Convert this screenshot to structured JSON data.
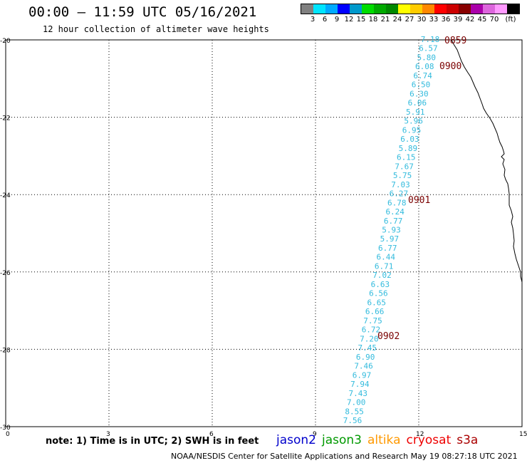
{
  "header": {
    "title": "00:00 – 11:59 UTC 05/16/2021",
    "subtitle": "12 hour collection of altimeter wave heights"
  },
  "legend": {
    "unit_label": "(ft)",
    "colors": [
      "#808080",
      "#00e5ff",
      "#00aaff",
      "#0000ff",
      "#0099cc",
      "#00dd00",
      "#00aa00",
      "#008800",
      "#ffff00",
      "#ffcc00",
      "#ff8800",
      "#ff0000",
      "#cc0000",
      "#880000",
      "#aa00aa",
      "#dd66dd",
      "#ff99ff",
      "#000000"
    ],
    "labels": [
      "3",
      "6",
      "9",
      "12",
      "15",
      "18",
      "21",
      "24",
      "27",
      "30",
      "33",
      "36",
      "39",
      "42",
      "45",
      "70"
    ]
  },
  "map": {
    "x_ticks": [
      "0",
      "3",
      "6",
      "9",
      "12",
      "15"
    ],
    "y_ticks": [
      "-20",
      "-22",
      "-24",
      "-26",
      "-28",
      "-30"
    ],
    "track_color": "#33bbdd",
    "time_color": "#7a0000",
    "swh_values": [
      "7.18",
      "6.57",
      "5.80",
      "6.08",
      "6.74",
      "6.50",
      "6.30",
      "6.06",
      "5.91",
      "5.96",
      "6.95",
      "6.03",
      "5.89",
      "6.15",
      "7.67",
      "5.75",
      "7.03",
      "6.27",
      "6.78",
      "6.24",
      "6.77",
      "5.93",
      "5.97",
      "6.77",
      "6.44",
      "6.71",
      "7.02",
      "6.63",
      "6.56",
      "6.65",
      "6.66",
      "7.75",
      "6.72",
      "7.20",
      "7.45",
      "6.90",
      "7.46",
      "6.97",
      "7.94",
      "7.43",
      "7.00",
      "8.55",
      "7.56"
    ],
    "time_labels": [
      "0859",
      "0900",
      "0901",
      "0902"
    ]
  },
  "footer": {
    "note": "note: 1) Time is in UTC; 2) SWH is in feet",
    "satellites": [
      {
        "name": "jason2",
        "color": "#0000cc"
      },
      {
        "name": "jason3",
        "color": "#009900"
      },
      {
        "name": "altika",
        "color": "#ff9900"
      },
      {
        "name": "cryosat",
        "color": "#ee0000"
      },
      {
        "name": "s3a",
        "color": "#aa0000"
      }
    ],
    "credit": "NOAA/NESDIS Center for Satellite Applications and Research    May 19 08:27:18 UTC 2021"
  }
}
